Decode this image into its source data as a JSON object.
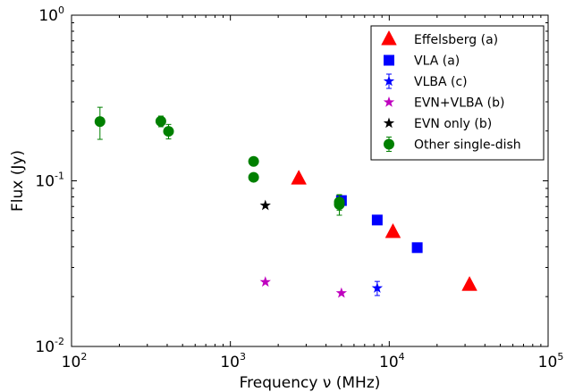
{
  "chart_data": {
    "type": "scatter",
    "xscale": "log",
    "yscale": "log",
    "xlim": [
      100,
      100000
    ],
    "ylim": [
      0.01,
      1
    ],
    "xlabel": "Frequency ν (MHz)",
    "ylabel": "Flux (Jy)",
    "title": "",
    "grid": false,
    "legend_position": "top-right",
    "x_ticks": [
      {
        "value": 100,
        "base": "10",
        "exp": "2"
      },
      {
        "value": 1000,
        "base": "10",
        "exp": "3"
      },
      {
        "value": 10000,
        "base": "10",
        "exp": "4"
      },
      {
        "value": 100000,
        "base": "10",
        "exp": "5"
      }
    ],
    "y_ticks": [
      {
        "value": 0.01,
        "base": "10",
        "exp": "-2"
      },
      {
        "value": 0.1,
        "base": "10",
        "exp": "-1"
      },
      {
        "value": 1,
        "base": "10",
        "exp": "0"
      }
    ],
    "series": [
      {
        "name": "Effelsberg (a)",
        "marker": "triangle",
        "color": "#ff0000",
        "points": [
          {
            "x": 2695,
            "y": 0.103
          },
          {
            "x": 10550,
            "y": 0.049
          },
          {
            "x": 32000,
            "y": 0.0235
          }
        ]
      },
      {
        "name": "VLA (a)",
        "marker": "square",
        "color": "#0000ff",
        "points": [
          {
            "x": 5000,
            "y": 0.076
          },
          {
            "x": 8400,
            "y": 0.058
          },
          {
            "x": 15000,
            "y": 0.0395
          }
        ]
      },
      {
        "name": "VLBA (c)",
        "marker": "star",
        "color": "#0000ff",
        "points": [
          {
            "x": 8400,
            "y": 0.0225,
            "yerr_low": 0.0022,
            "yerr_high": 0.0022
          }
        ]
      },
      {
        "name": "EVN+VLBA (b)",
        "marker": "star",
        "color": "#bf00bf",
        "points": [
          {
            "x": 1660,
            "y": 0.0245
          },
          {
            "x": 5000,
            "y": 0.021
          }
        ]
      },
      {
        "name": "EVN only (b)",
        "marker": "star",
        "color": "#000000",
        "points": [
          {
            "x": 1660,
            "y": 0.071
          }
        ]
      },
      {
        "name": "Other single-dish",
        "marker": "circle",
        "color": "#008000",
        "points": [
          {
            "x": 151,
            "y": 0.228,
            "yerr_low": 0.05,
            "yerr_high": 0.05
          },
          {
            "x": 365,
            "y": 0.229,
            "yerr_low": 0.017,
            "yerr_high": 0.017
          },
          {
            "x": 408,
            "y": 0.199,
            "yerr_low": 0.02,
            "yerr_high": 0.02
          },
          {
            "x": 1400,
            "y": 0.131
          },
          {
            "x": 1400,
            "y": 0.105
          },
          {
            "x": 4850,
            "y": 0.072,
            "yerr_low": 0.01,
            "yerr_high": 0.01
          },
          {
            "x": 4850,
            "y": 0.0745,
            "yerr_low": 0.008,
            "yerr_high": 0.008
          }
        ]
      }
    ]
  }
}
